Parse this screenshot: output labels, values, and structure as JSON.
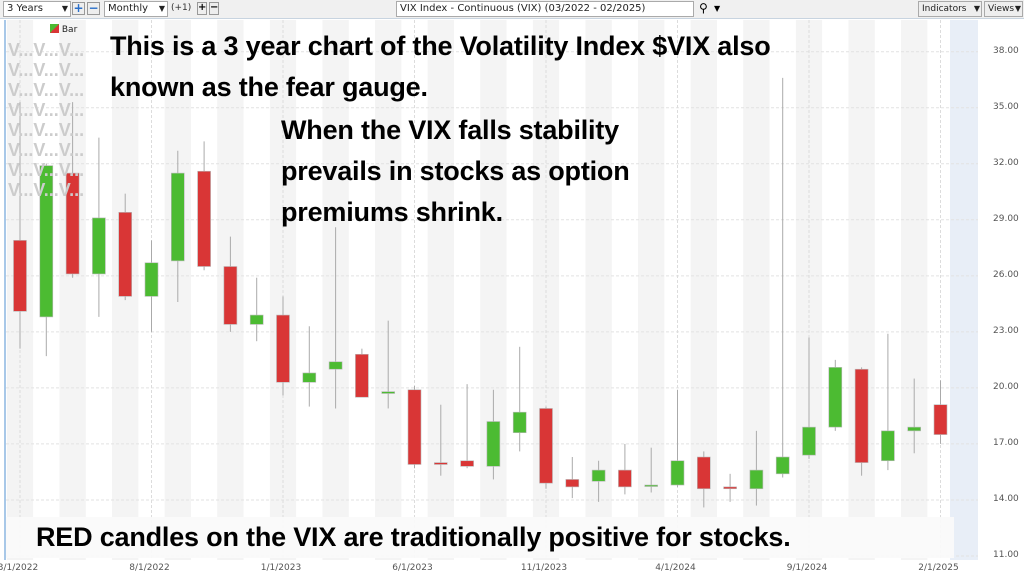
{
  "toolbar": {
    "range": "3 Years",
    "zoom_in": "+",
    "zoom_out": "−",
    "interval": "Monthly",
    "offset": "(+1)",
    "offset_plus": "+",
    "offset_minus": "−",
    "symbol": "VIX Index - Continuous (VIX) (03/2022 - 02/2025)",
    "search_icon": "magnifier-icon",
    "indicators": "Indicators",
    "views": "Views"
  },
  "legend": {
    "label": "Bar"
  },
  "markers": "V...V...V...V...V...V...V...V...V...V...V...V...V...V...V...V...V...V...V...V...V...V...V...V...",
  "annotations": {
    "title_line1": "This is a 3 year chart of the Volatility Index $VIX also",
    "title_line2": "known as the fear gauge.",
    "note_line1": "When the VIX falls stability",
    "note_line2": "prevails in stocks as option",
    "note_line3": "premiums shrink.",
    "bottom": "RED candles on the VIX are traditionally positive for stocks."
  },
  "chart_data": {
    "type": "candlestick",
    "title": "VIX Index - Continuous (VIX) (03/2022 - 02/2025)",
    "interval": "Monthly",
    "ylim": [
      11,
      38
    ],
    "y_ticks": [
      "38.00",
      "35.00",
      "32.00",
      "29.00",
      "26.00",
      "23.00",
      "20.00",
      "17.00",
      "14.00",
      "11.00"
    ],
    "x_ticks": [
      "3/1/2022",
      "8/1/2022",
      "1/1/2023",
      "6/1/2023",
      "11/1/2023",
      "4/1/2024",
      "9/1/2024",
      "2/1/2025"
    ],
    "x_tick_index": [
      0,
      5,
      10,
      15,
      20,
      25,
      30,
      35
    ],
    "colors": {
      "up": "#4cbb32",
      "down": "#d93636",
      "wick": "#aaaaaa"
    },
    "grid": true,
    "candles": [
      {
        "date": "2022-03",
        "o": 27.9,
        "h": 35.3,
        "l": 22.1,
        "c": 24.1
      },
      {
        "date": "2022-04",
        "o": 23.8,
        "h": 32.0,
        "l": 21.7,
        "c": 31.9
      },
      {
        "date": "2022-05",
        "o": 31.5,
        "h": 35.3,
        "l": 25.9,
        "c": 26.1
      },
      {
        "date": "2022-06",
        "o": 26.1,
        "h": 33.4,
        "l": 23.8,
        "c": 29.1
      },
      {
        "date": "2022-07",
        "o": 29.4,
        "h": 30.4,
        "l": 24.7,
        "c": 24.9
      },
      {
        "date": "2022-08",
        "o": 24.9,
        "h": 27.9,
        "l": 23.0,
        "c": 26.7
      },
      {
        "date": "2022-09",
        "o": 26.8,
        "h": 32.7,
        "l": 24.6,
        "c": 31.5
      },
      {
        "date": "2022-10",
        "o": 31.6,
        "h": 33.2,
        "l": 26.3,
        "c": 26.5
      },
      {
        "date": "2022-11",
        "o": 26.5,
        "h": 28.1,
        "l": 23.0,
        "c": 23.4
      },
      {
        "date": "2022-12",
        "o": 23.4,
        "h": 25.9,
        "l": 22.5,
        "c": 23.9
      },
      {
        "date": "2023-01",
        "o": 23.9,
        "h": 24.9,
        "l": 19.6,
        "c": 20.3
      },
      {
        "date": "2023-02",
        "o": 20.3,
        "h": 23.3,
        "l": 19.0,
        "c": 20.8
      },
      {
        "date": "2023-03",
        "o": 21.0,
        "h": 28.6,
        "l": 18.9,
        "c": 21.4
      },
      {
        "date": "2023-04",
        "o": 21.8,
        "h": 22.1,
        "l": 19.5,
        "c": 19.5
      },
      {
        "date": "2023-05",
        "o": 19.7,
        "h": 23.6,
        "l": 18.9,
        "c": 19.8
      },
      {
        "date": "2023-06",
        "o": 19.9,
        "h": 20.1,
        "l": 15.7,
        "c": 15.9
      },
      {
        "date": "2023-07",
        "o": 16.0,
        "h": 19.1,
        "l": 15.3,
        "c": 15.9
      },
      {
        "date": "2023-08",
        "o": 16.1,
        "h": 20.2,
        "l": 15.7,
        "c": 15.8
      },
      {
        "date": "2023-09",
        "o": 15.8,
        "h": 19.9,
        "l": 15.1,
        "c": 18.2
      },
      {
        "date": "2023-10",
        "o": 17.6,
        "h": 22.2,
        "l": 16.6,
        "c": 18.7
      },
      {
        "date": "2023-11",
        "o": 18.9,
        "h": 19.0,
        "l": 14.6,
        "c": 14.9
      },
      {
        "date": "2023-12",
        "o": 15.1,
        "h": 16.3,
        "l": 14.1,
        "c": 14.7
      },
      {
        "date": "2024-01",
        "o": 15.0,
        "h": 16.1,
        "l": 13.9,
        "c": 15.6
      },
      {
        "date": "2024-02",
        "o": 15.6,
        "h": 17.0,
        "l": 14.3,
        "c": 14.7
      },
      {
        "date": "2024-03",
        "o": 14.8,
        "h": 16.8,
        "l": 14.4,
        "c": 14.8
      },
      {
        "date": "2024-04",
        "o": 14.8,
        "h": 19.9,
        "l": 14.7,
        "c": 16.1
      },
      {
        "date": "2024-05",
        "o": 16.3,
        "h": 16.6,
        "l": 13.6,
        "c": 14.6
      },
      {
        "date": "2024-06",
        "o": 14.7,
        "h": 15.4,
        "l": 13.9,
        "c": 14.6
      },
      {
        "date": "2024-07",
        "o": 14.6,
        "h": 17.7,
        "l": 13.7,
        "c": 15.6
      },
      {
        "date": "2024-08",
        "o": 15.4,
        "h": 36.6,
        "l": 15.2,
        "c": 16.3
      },
      {
        "date": "2024-09",
        "o": 16.4,
        "h": 22.7,
        "l": 16.2,
        "c": 17.9
      },
      {
        "date": "2024-10",
        "o": 17.9,
        "h": 21.5,
        "l": 17.7,
        "c": 21.1
      },
      {
        "date": "2024-11",
        "o": 21.0,
        "h": 21.1,
        "l": 15.3,
        "c": 16.0
      },
      {
        "date": "2024-12",
        "o": 16.1,
        "h": 22.9,
        "l": 15.6,
        "c": 17.7
      },
      {
        "date": "2025-01",
        "o": 17.7,
        "h": 20.5,
        "l": 16.5,
        "c": 17.9
      },
      {
        "date": "2025-02",
        "o": 19.1,
        "h": 20.4,
        "l": 17.0,
        "c": 17.5
      }
    ]
  }
}
